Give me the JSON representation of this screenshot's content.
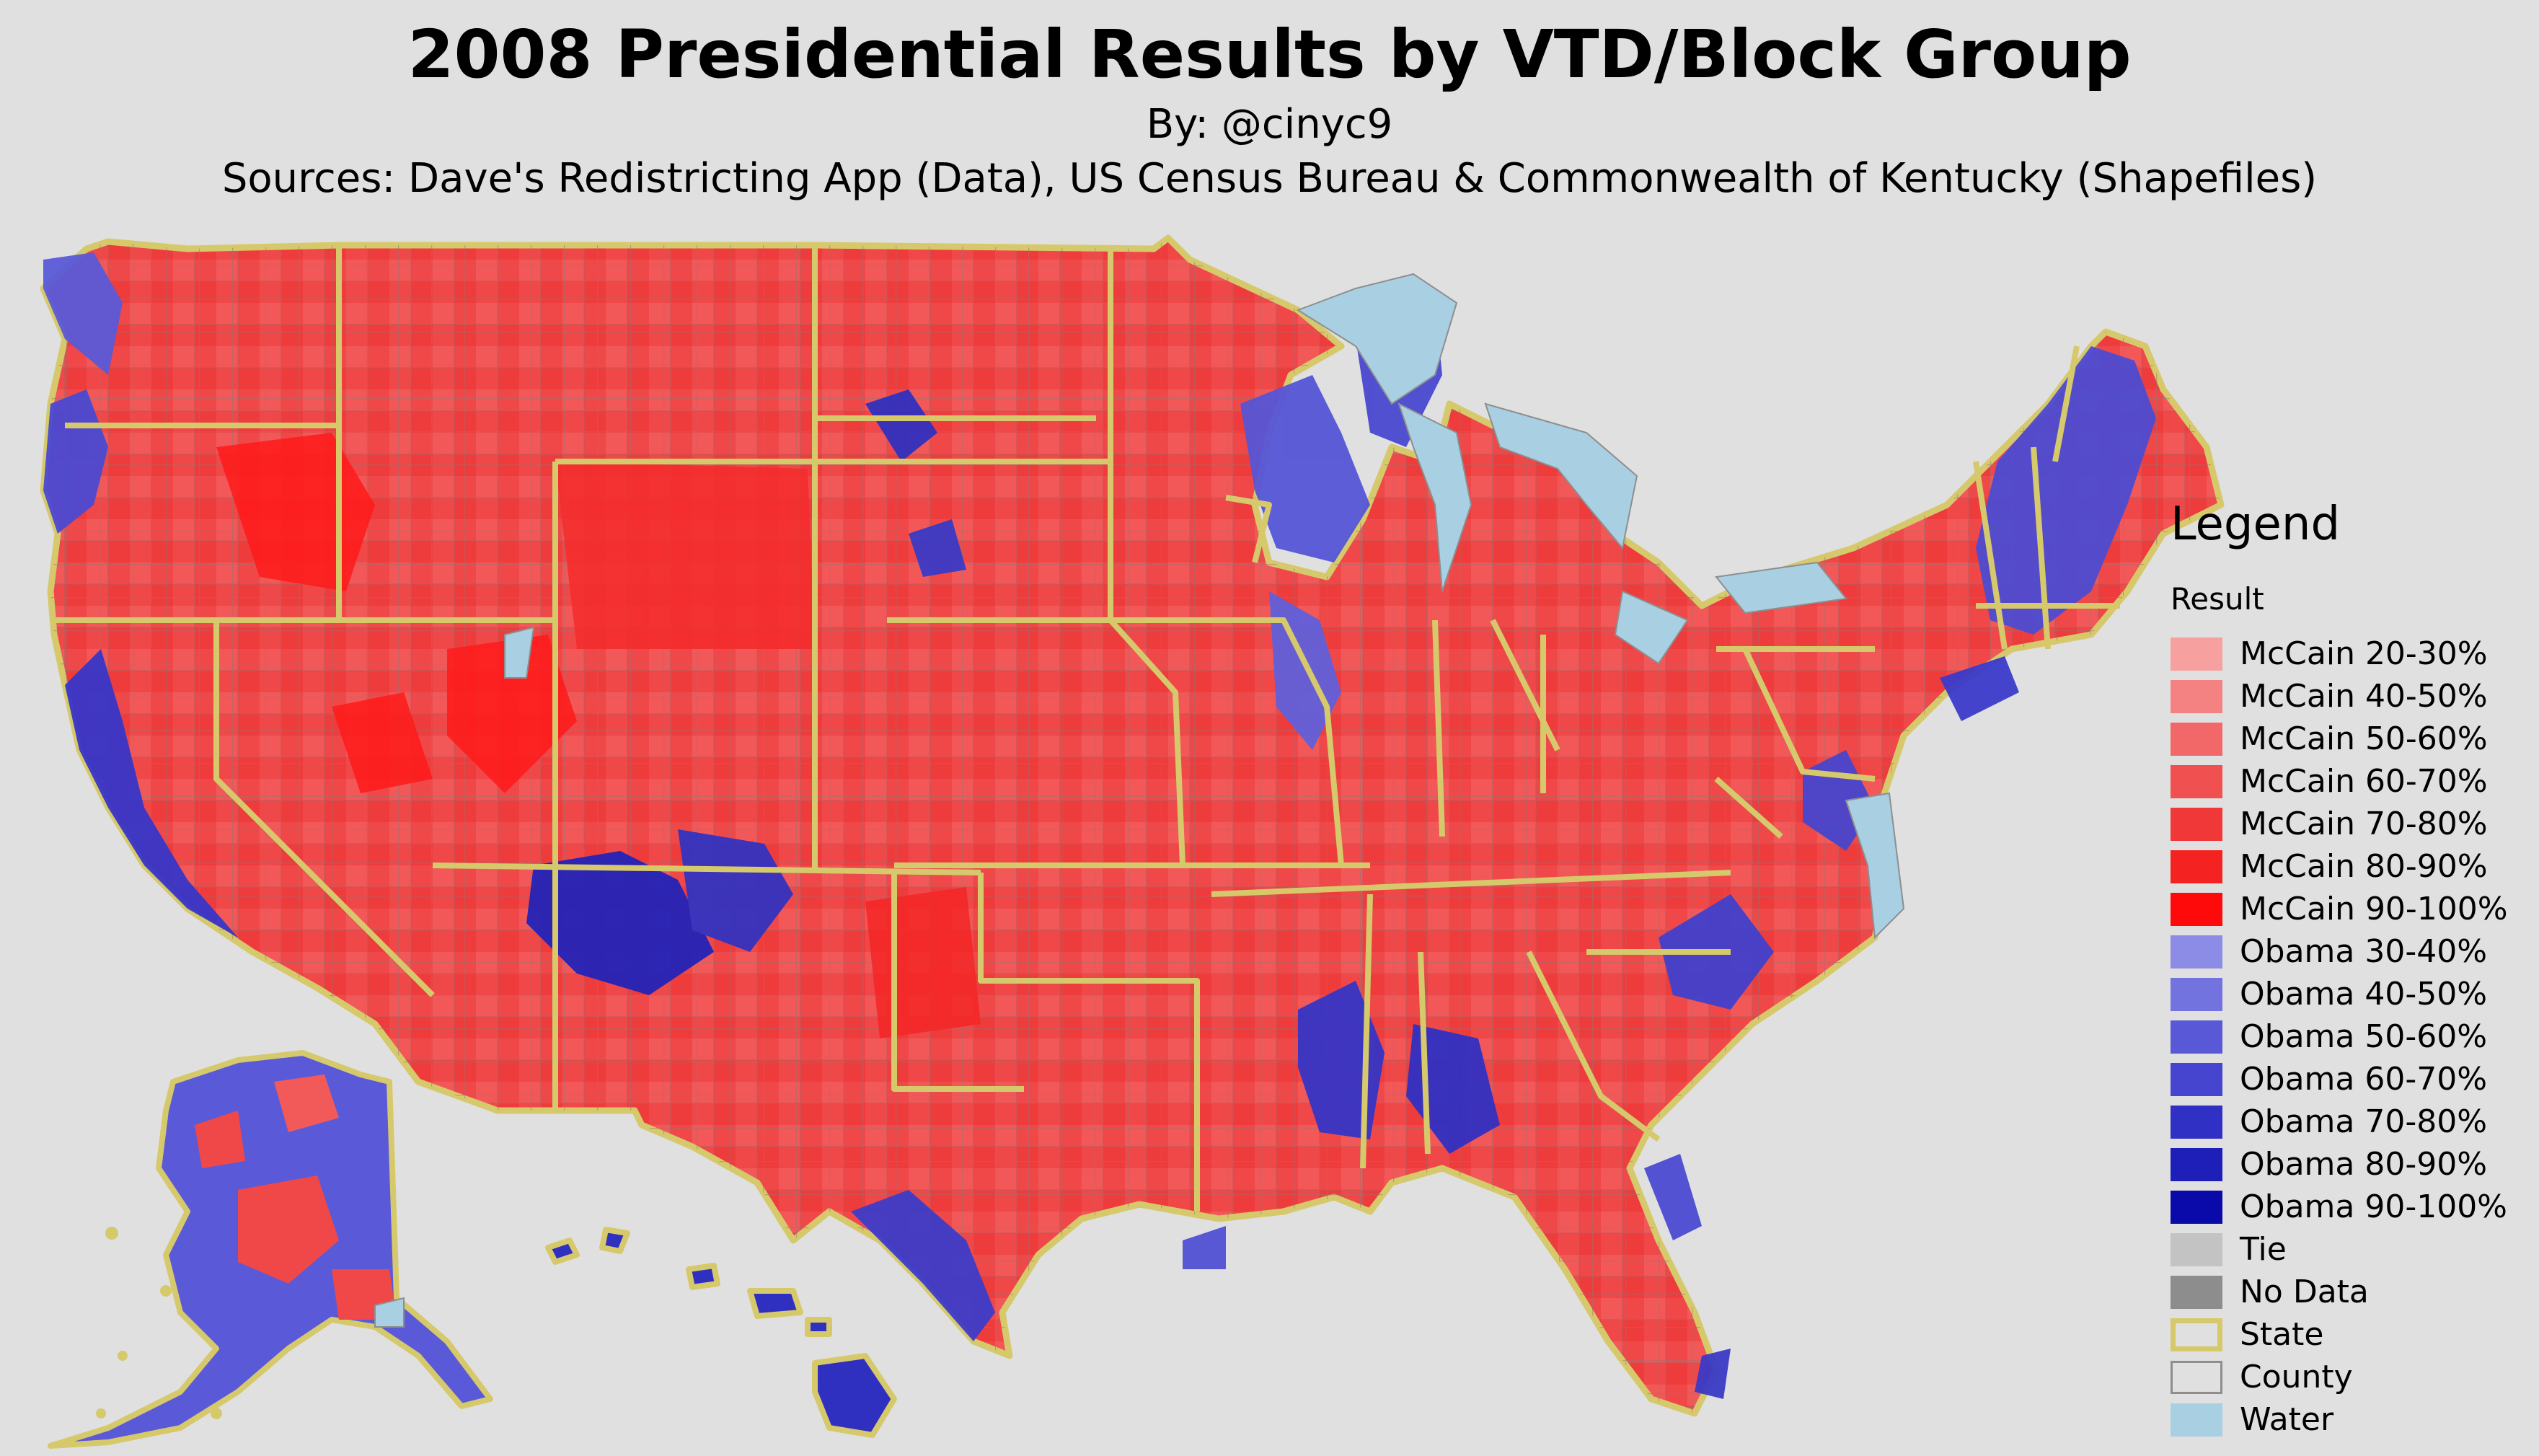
{
  "title": "2008 Presidential Results by VTD/Block Group",
  "byline": "By: @cinyc9",
  "sources": "Sources: Dave's Redistricting App (Data), US Census Bureau & Commonwealth of Kentucky (Shapefiles)",
  "colors": {
    "background": "#e0e0e0",
    "state_border": "#d6c96c",
    "county_border": "#8e8e8e",
    "water": "#a9cfe3",
    "mccain_base": "#f04848",
    "obama_base": "#3d3dd0"
  },
  "legend": {
    "title": "Legend",
    "subtitle": "Result",
    "items": [
      {
        "label": "McCain 20-30%",
        "color": "#f7a0a0",
        "type": "fill"
      },
      {
        "label": "McCain 40-50%",
        "color": "#f58282",
        "type": "fill"
      },
      {
        "label": "McCain 50-60%",
        "color": "#f26868",
        "type": "fill"
      },
      {
        "label": "McCain 60-70%",
        "color": "#f05050",
        "type": "fill"
      },
      {
        "label": "McCain 70-80%",
        "color": "#f03838",
        "type": "fill"
      },
      {
        "label": "McCain 80-90%",
        "color": "#f52222",
        "type": "fill"
      },
      {
        "label": "McCain 90-100%",
        "color": "#ff0a0a",
        "type": "fill"
      },
      {
        "label": "Obama 30-40%",
        "color": "#8c8ce6",
        "type": "fill"
      },
      {
        "label": "Obama 40-50%",
        "color": "#7373df",
        "type": "fill"
      },
      {
        "label": "Obama 50-60%",
        "color": "#5959d8",
        "type": "fill"
      },
      {
        "label": "Obama 60-70%",
        "color": "#4545cf",
        "type": "fill"
      },
      {
        "label": "Obama 70-80%",
        "color": "#3030c4",
        "type": "fill"
      },
      {
        "label": "Obama 80-90%",
        "color": "#1e1eb8",
        "type": "fill"
      },
      {
        "label": "Obama 90-100%",
        "color": "#0a0aaa",
        "type": "fill"
      },
      {
        "label": "Tie",
        "color": "#c3c3c3",
        "type": "fill"
      },
      {
        "label": "No Data",
        "color": "#8d8d8d",
        "type": "fill"
      },
      {
        "label": "State",
        "color": "#d6c96c",
        "type": "outline"
      },
      {
        "label": "County",
        "color": "#8e8e8e",
        "type": "outline"
      },
      {
        "label": "Water",
        "color": "#a9cfe3",
        "type": "fill"
      }
    ]
  }
}
